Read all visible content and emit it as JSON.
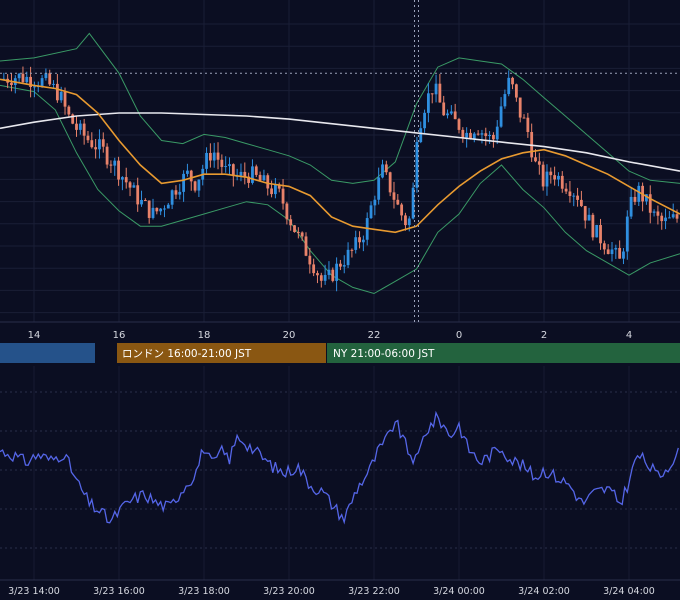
{
  "chart_data": [
    {
      "type": "candlestick",
      "x_ticks": [
        "14",
        "16",
        "18",
        "20",
        "22",
        "0",
        "2",
        "4"
      ],
      "x_tick_hours": [
        14,
        16,
        18,
        20,
        22,
        24,
        26,
        28
      ],
      "x_range_hours": [
        13.2,
        29.2
      ],
      "y_range": [
        0,
        100
      ],
      "grid": true,
      "candle_colors": {
        "up": "#2f8fe0",
        "down": "#e8826a"
      },
      "close_path": [
        [
          13.2,
          78
        ],
        [
          13.6,
          79
        ],
        [
          14.0,
          78
        ],
        [
          14.3,
          77
        ],
        [
          14.6,
          73
        ],
        [
          14.8,
          66
        ],
        [
          15.0,
          62
        ],
        [
          15.3,
          58
        ],
        [
          15.6,
          55
        ],
        [
          15.9,
          50
        ],
        [
          16.2,
          44
        ],
        [
          16.5,
          38
        ],
        [
          16.8,
          34
        ],
        [
          17.0,
          36
        ],
        [
          17.3,
          42
        ],
        [
          17.6,
          47
        ],
        [
          17.8,
          44
        ],
        [
          18.0,
          50
        ],
        [
          18.2,
          55
        ],
        [
          18.5,
          48
        ],
        [
          18.8,
          46
        ],
        [
          19.1,
          47
        ],
        [
          19.4,
          44
        ],
        [
          19.6,
          42
        ],
        [
          19.8,
          40
        ],
        [
          20.0,
          33
        ],
        [
          20.2,
          27
        ],
        [
          20.4,
          22
        ],
        [
          20.6,
          17
        ],
        [
          20.8,
          11
        ],
        [
          21.0,
          14
        ],
        [
          21.2,
          18
        ],
        [
          21.5,
          22
        ],
        [
          21.8,
          29
        ],
        [
          22.0,
          40
        ],
        [
          22.2,
          48
        ],
        [
          22.4,
          42
        ],
        [
          22.6,
          35
        ],
        [
          22.8,
          30
        ],
        [
          22.9,
          37
        ],
        [
          23.0,
          60
        ],
        [
          23.2,
          70
        ],
        [
          23.4,
          76
        ],
        [
          23.6,
          68
        ],
        [
          23.8,
          65
        ],
        [
          24.0,
          63
        ],
        [
          24.2,
          60
        ],
        [
          24.4,
          63
        ],
        [
          24.6,
          60
        ],
        [
          24.8,
          58
        ],
        [
          25.0,
          70
        ],
        [
          25.2,
          78
        ],
        [
          25.4,
          68
        ],
        [
          25.6,
          62
        ],
        [
          25.8,
          50
        ],
        [
          26.0,
          44
        ],
        [
          26.2,
          48
        ],
        [
          26.4,
          45
        ],
        [
          26.6,
          43
        ],
        [
          26.8,
          40
        ],
        [
          27.0,
          33
        ],
        [
          27.2,
          28
        ],
        [
          27.4,
          25
        ],
        [
          27.6,
          22
        ],
        [
          27.8,
          18
        ],
        [
          28.0,
          35
        ],
        [
          28.2,
          42
        ],
        [
          28.4,
          38
        ],
        [
          28.6,
          33
        ],
        [
          28.8,
          31
        ],
        [
          29.0,
          32
        ],
        [
          29.2,
          33
        ]
      ],
      "sma_short_path": [
        [
          13.2,
          78
        ],
        [
          14.0,
          76
        ],
        [
          14.5,
          75
        ],
        [
          15.0,
          73
        ],
        [
          15.5,
          67
        ],
        [
          16.0,
          58
        ],
        [
          16.5,
          50
        ],
        [
          17.0,
          44
        ],
        [
          17.5,
          45
        ],
        [
          18.0,
          47
        ],
        [
          18.5,
          47
        ],
        [
          19.0,
          46
        ],
        [
          19.5,
          44
        ],
        [
          20.0,
          43
        ],
        [
          20.5,
          40
        ],
        [
          21.0,
          33
        ],
        [
          21.5,
          30
        ],
        [
          22.0,
          29
        ],
        [
          22.5,
          28
        ],
        [
          23.0,
          30
        ],
        [
          23.5,
          37
        ],
        [
          24.0,
          43
        ],
        [
          24.5,
          48
        ],
        [
          25.0,
          52
        ],
        [
          25.5,
          54
        ],
        [
          26.0,
          55
        ],
        [
          26.5,
          53
        ],
        [
          27.0,
          50
        ],
        [
          27.5,
          47
        ],
        [
          28.0,
          43
        ],
        [
          28.5,
          39
        ],
        [
          29.2,
          34
        ]
      ],
      "sma_long_path": [
        [
          13.2,
          62
        ],
        [
          14.0,
          64
        ],
        [
          15.0,
          66
        ],
        [
          16.0,
          67
        ],
        [
          17.0,
          67
        ],
        [
          18.0,
          66.5
        ],
        [
          19.0,
          66
        ],
        [
          20.0,
          65
        ],
        [
          21.0,
          63.5
        ],
        [
          22.0,
          62
        ],
        [
          23.0,
          60.5
        ],
        [
          24.0,
          59
        ],
        [
          25.0,
          57.5
        ],
        [
          26.0,
          56
        ],
        [
          27.0,
          54
        ],
        [
          28.0,
          51
        ],
        [
          29.2,
          48
        ]
      ],
      "band_upper_path": [
        [
          13.2,
          84
        ],
        [
          14.0,
          85
        ],
        [
          15.0,
          88
        ],
        [
          15.3,
          93
        ],
        [
          16.0,
          80
        ],
        [
          16.5,
          66
        ],
        [
          17.0,
          58
        ],
        [
          17.5,
          57
        ],
        [
          18.0,
          60
        ],
        [
          18.5,
          59
        ],
        [
          19.0,
          57
        ],
        [
          19.5,
          55
        ],
        [
          20.0,
          53
        ],
        [
          20.5,
          50
        ],
        [
          21.0,
          45
        ],
        [
          21.5,
          44
        ],
        [
          22.0,
          45
        ],
        [
          22.5,
          51
        ],
        [
          23.0,
          70
        ],
        [
          23.5,
          82
        ],
        [
          24.0,
          85
        ],
        [
          24.5,
          84
        ],
        [
          25.0,
          83
        ],
        [
          25.5,
          78
        ],
        [
          26.0,
          72
        ],
        [
          26.5,
          66
        ],
        [
          27.0,
          60
        ],
        [
          27.5,
          54
        ],
        [
          28.0,
          48
        ],
        [
          28.5,
          45
        ],
        [
          29.2,
          44
        ]
      ],
      "band_lower_path": [
        [
          13.2,
          76
        ],
        [
          14.0,
          74
        ],
        [
          14.5,
          68
        ],
        [
          15.0,
          54
        ],
        [
          15.5,
          42
        ],
        [
          16.0,
          35
        ],
        [
          16.5,
          30
        ],
        [
          17.0,
          30
        ],
        [
          17.5,
          32
        ],
        [
          18.0,
          34
        ],
        [
          18.5,
          36
        ],
        [
          19.0,
          38
        ],
        [
          19.5,
          37
        ],
        [
          20.0,
          32
        ],
        [
          20.5,
          22
        ],
        [
          21.0,
          14
        ],
        [
          21.5,
          10
        ],
        [
          22.0,
          8
        ],
        [
          22.5,
          12
        ],
        [
          23.0,
          16
        ],
        [
          23.5,
          28
        ],
        [
          24.0,
          34
        ],
        [
          24.5,
          44
        ],
        [
          25.0,
          50
        ],
        [
          25.5,
          42
        ],
        [
          26.0,
          36
        ],
        [
          26.5,
          28
        ],
        [
          27.0,
          22
        ],
        [
          27.5,
          18
        ],
        [
          28.0,
          14
        ],
        [
          28.5,
          18
        ],
        [
          29.2,
          21
        ]
      ],
      "hline_level": 80,
      "vline_hour": 23.0
    },
    {
      "type": "line",
      "x_tick_labels": [
        "3/23 14:00",
        "3/23 16:00",
        "3/23 18:00",
        "3/23 20:00",
        "3/23 22:00",
        "3/24 00:00",
        "3/24 02:00",
        "3/24 04:00"
      ],
      "x_tick_hours": [
        14,
        16,
        18,
        20,
        22,
        24,
        26,
        28
      ],
      "x_range_hours": [
        13.2,
        29.2
      ],
      "y_range": [
        0,
        100
      ],
      "grid": true,
      "line_color": "#5566e8",
      "points": [
        [
          13.2,
          58
        ],
        [
          13.5,
          56
        ],
        [
          13.8,
          52
        ],
        [
          14.1,
          56
        ],
        [
          14.4,
          53
        ],
        [
          14.7,
          57
        ],
        [
          15.0,
          42
        ],
        [
          15.3,
          30
        ],
        [
          15.6,
          25
        ],
        [
          15.8,
          20
        ],
        [
          16.0,
          26
        ],
        [
          16.3,
          32
        ],
        [
          16.6,
          35
        ],
        [
          16.9,
          30
        ],
        [
          17.2,
          28
        ],
        [
          17.5,
          38
        ],
        [
          17.8,
          46
        ],
        [
          18.0,
          60
        ],
        [
          18.2,
          50
        ],
        [
          18.4,
          58
        ],
        [
          18.6,
          54
        ],
        [
          18.8,
          66
        ],
        [
          19.0,
          62
        ],
        [
          19.3,
          56
        ],
        [
          19.6,
          50
        ],
        [
          19.9,
          46
        ],
        [
          20.2,
          50
        ],
        [
          20.5,
          40
        ],
        [
          20.8,
          36
        ],
        [
          21.0,
          30
        ],
        [
          21.3,
          22
        ],
        [
          21.6,
          38
        ],
        [
          21.9,
          48
        ],
        [
          22.1,
          58
        ],
        [
          22.3,
          64
        ],
        [
          22.5,
          74
        ],
        [
          22.8,
          58
        ],
        [
          23.0,
          52
        ],
        [
          23.2,
          68
        ],
        [
          23.5,
          76
        ],
        [
          23.8,
          66
        ],
        [
          24.0,
          72
        ],
        [
          24.2,
          60
        ],
        [
          24.5,
          52
        ],
        [
          24.8,
          57
        ],
        [
          25.0,
          60
        ],
        [
          25.2,
          54
        ],
        [
          25.5,
          50
        ],
        [
          25.8,
          44
        ],
        [
          26.0,
          48
        ],
        [
          26.3,
          44
        ],
        [
          26.6,
          40
        ],
        [
          26.9,
          30
        ],
        [
          27.2,
          36
        ],
        [
          27.5,
          38
        ],
        [
          27.8,
          30
        ],
        [
          28.0,
          42
        ],
        [
          28.2,
          56
        ],
        [
          28.4,
          52
        ],
        [
          28.7,
          44
        ],
        [
          29.2,
          58
        ]
      ]
    }
  ],
  "sessions": [
    {
      "name": "",
      "color": "#25528a"
    },
    {
      "name": "ロンドン 16:00-21:00 JST",
      "color": "#8a5712"
    },
    {
      "name": "NY 21:00-06:00 JST",
      "color": "#23633e"
    }
  ]
}
